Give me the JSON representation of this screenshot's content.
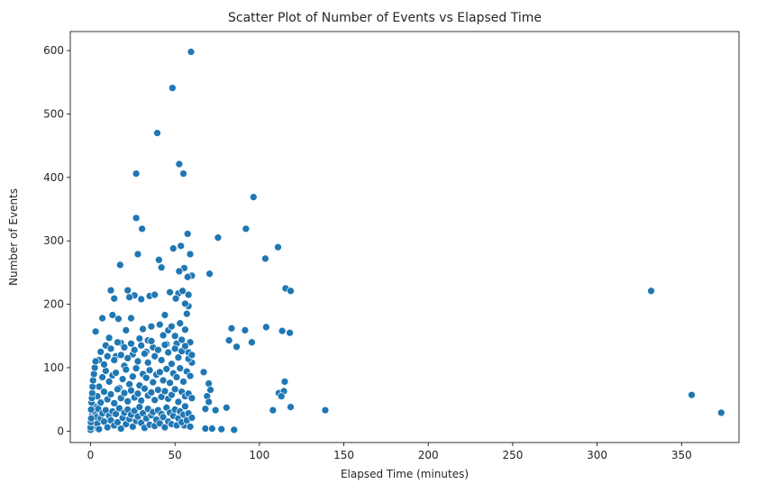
{
  "chart_data": {
    "type": "scatter",
    "title": "Scatter Plot of Number of Events vs Elapsed Time",
    "xlabel": "Elapsed Time (minutes)",
    "ylabel": "Number of Events",
    "xlim": [
      -12,
      384
    ],
    "ylim": [
      -18,
      630
    ],
    "xticks": [
      0,
      50,
      100,
      150,
      200,
      250,
      300,
      350
    ],
    "yticks": [
      0,
      100,
      200,
      300,
      400,
      500,
      600
    ],
    "grid": false,
    "legend": "none",
    "marker_color": "#1f77b4",
    "marker_edge_color": "#ffffff",
    "points": [
      [
        59.5,
        598
      ],
      [
        48.5,
        541
      ],
      [
        39.5,
        470
      ],
      [
        52.5,
        421
      ],
      [
        27,
        406
      ],
      [
        55,
        406
      ],
      [
        96.5,
        369
      ],
      [
        27,
        336
      ],
      [
        30.5,
        319
      ],
      [
        92,
        319
      ],
      [
        57.5,
        311
      ],
      [
        75.5,
        305
      ],
      [
        111,
        290
      ],
      [
        49,
        288
      ],
      [
        53.5,
        292
      ],
      [
        59,
        279
      ],
      [
        28,
        279
      ],
      [
        103.5,
        272
      ],
      [
        40.5,
        270
      ],
      [
        17.5,
        262
      ],
      [
        42,
        258
      ],
      [
        55.5,
        257
      ],
      [
        52.5,
        252
      ],
      [
        70.5,
        248
      ],
      [
        60,
        245
      ],
      [
        57.5,
        243
      ],
      [
        115.5,
        225
      ],
      [
        118.5,
        221
      ],
      [
        332,
        221
      ],
      [
        12,
        222
      ],
      [
        30,
        208
      ],
      [
        22,
        222
      ],
      [
        35,
        213
      ],
      [
        26,
        214
      ],
      [
        52,
        217
      ],
      [
        54.5,
        221
      ],
      [
        58,
        197
      ],
      [
        13,
        183
      ],
      [
        14,
        209
      ],
      [
        23,
        211
      ],
      [
        47,
        219
      ],
      [
        16.5,
        177
      ],
      [
        38,
        215
      ],
      [
        50.5,
        209
      ],
      [
        82,
        143
      ],
      [
        83.5,
        162
      ],
      [
        91.5,
        159
      ],
      [
        104,
        164
      ],
      [
        113.5,
        158
      ],
      [
        118,
        155
      ],
      [
        86.5,
        133
      ],
      [
        95.5,
        140
      ],
      [
        80.5,
        37
      ],
      [
        67,
        93
      ],
      [
        70,
        75
      ],
      [
        71,
        65
      ],
      [
        69,
        55
      ],
      [
        70,
        46
      ],
      [
        68,
        35
      ],
      [
        74,
        33
      ],
      [
        108,
        33
      ],
      [
        118.5,
        38
      ],
      [
        139,
        33
      ],
      [
        356,
        57
      ],
      [
        373.5,
        29
      ],
      [
        111.5,
        60
      ],
      [
        114.5,
        63
      ],
      [
        113,
        55
      ],
      [
        115,
        78
      ],
      [
        68,
        4
      ],
      [
        72,
        4
      ],
      [
        77.5,
        3
      ],
      [
        85,
        2
      ],
      [
        55.5,
        9
      ],
      [
        3,
        157
      ],
      [
        5,
        112
      ],
      [
        7,
        178
      ],
      [
        9,
        135
      ],
      [
        11,
        147
      ],
      [
        15,
        118
      ],
      [
        18,
        139
      ],
      [
        20,
        103
      ],
      [
        21,
        159
      ],
      [
        24,
        178
      ],
      [
        25,
        121
      ],
      [
        29,
        146
      ],
      [
        31,
        161
      ],
      [
        33,
        125
      ],
      [
        34,
        143
      ],
      [
        36,
        165
      ],
      [
        37,
        132
      ],
      [
        41,
        168
      ],
      [
        43,
        151
      ],
      [
        44,
        183
      ],
      [
        45,
        137
      ],
      [
        46,
        159
      ],
      [
        48,
        165
      ],
      [
        50,
        150
      ],
      [
        51,
        138
      ],
      [
        53,
        170
      ],
      [
        54,
        144
      ],
      [
        56,
        160
      ],
      [
        57,
        185
      ],
      [
        58,
        124
      ],
      [
        59,
        140
      ],
      [
        60,
        108
      ],
      [
        56,
        201
      ],
      [
        58,
        215
      ],
      [
        5,
        70
      ],
      [
        7,
        85
      ],
      [
        9,
        95
      ],
      [
        11,
        78
      ],
      [
        13,
        88
      ],
      [
        15,
        92
      ],
      [
        17,
        68
      ],
      [
        19,
        82
      ],
      [
        21,
        97
      ],
      [
        23,
        74
      ],
      [
        25,
        86
      ],
      [
        27,
        99
      ],
      [
        29,
        72
      ],
      [
        31,
        90
      ],
      [
        33,
        84
      ],
      [
        35,
        96
      ],
      [
        37,
        77
      ],
      [
        39,
        89
      ],
      [
        41,
        93
      ],
      [
        43,
        80
      ],
      [
        45,
        98
      ],
      [
        47,
        76
      ],
      [
        49,
        91
      ],
      [
        51,
        85
      ],
      [
        53,
        99
      ],
      [
        55,
        78
      ],
      [
        57,
        94
      ],
      [
        59,
        87
      ],
      [
        2,
        40
      ],
      [
        4,
        55
      ],
      [
        6,
        45
      ],
      [
        8,
        62
      ],
      [
        10,
        50
      ],
      [
        12,
        58
      ],
      [
        14,
        44
      ],
      [
        16,
        66
      ],
      [
        18,
        52
      ],
      [
        20,
        60
      ],
      [
        22,
        47
      ],
      [
        24,
        64
      ],
      [
        26,
        53
      ],
      [
        28,
        59
      ],
      [
        30,
        48
      ],
      [
        32,
        67
      ],
      [
        34,
        56
      ],
      [
        36,
        61
      ],
      [
        38,
        49
      ],
      [
        40,
        65
      ],
      [
        42,
        54
      ],
      [
        44,
        63
      ],
      [
        46,
        51
      ],
      [
        48,
        57
      ],
      [
        50,
        66
      ],
      [
        52,
        46
      ],
      [
        54,
        62
      ],
      [
        56,
        55
      ],
      [
        58,
        59
      ],
      [
        60,
        52
      ],
      [
        0.5,
        10
      ],
      [
        1,
        25
      ],
      [
        1.5,
        5
      ],
      [
        2,
        18
      ],
      [
        2.5,
        30
      ],
      [
        3,
        8
      ],
      [
        3.5,
        22
      ],
      [
        4,
        12
      ],
      [
        4.5,
        35
      ],
      [
        5,
        3
      ],
      [
        6,
        20
      ],
      [
        7,
        28
      ],
      [
        8,
        15
      ],
      [
        9,
        33
      ],
      [
        10,
        6
      ],
      [
        11,
        24
      ],
      [
        12,
        17
      ],
      [
        13,
        31
      ],
      [
        14,
        9
      ],
      [
        15,
        27
      ],
      [
        16,
        14
      ],
      [
        17,
        36
      ],
      [
        18,
        4
      ],
      [
        19,
        21
      ],
      [
        20,
        29
      ],
      [
        21,
        11
      ],
      [
        22,
        34
      ],
      [
        23,
        19
      ],
      [
        24,
        26
      ],
      [
        25,
        7
      ],
      [
        26,
        32
      ],
      [
        27,
        16
      ],
      [
        28,
        23
      ],
      [
        29,
        38
      ],
      [
        30,
        13
      ],
      [
        31,
        28
      ],
      [
        32,
        5
      ],
      [
        33,
        20
      ],
      [
        34,
        35
      ],
      [
        35,
        10
      ],
      [
        36,
        25
      ],
      [
        37,
        30
      ],
      [
        38,
        8
      ],
      [
        39,
        18
      ],
      [
        40,
        33
      ],
      [
        41,
        12
      ],
      [
        42,
        27
      ],
      [
        43,
        22
      ],
      [
        44,
        6
      ],
      [
        45,
        37
      ],
      [
        46,
        15
      ],
      [
        47,
        29
      ],
      [
        48,
        11
      ],
      [
        49,
        24
      ],
      [
        50,
        34
      ],
      [
        51,
        9
      ],
      [
        52,
        20
      ],
      [
        53,
        31
      ],
      [
        54,
        14
      ],
      [
        55,
        26
      ],
      [
        56,
        39
      ],
      [
        57,
        17
      ],
      [
        58,
        28
      ],
      [
        59,
        7
      ],
      [
        60,
        21
      ],
      [
        0,
        2
      ],
      [
        0,
        6
      ],
      [
        0.2,
        14
      ],
      [
        0.4,
        20
      ],
      [
        0.3,
        34
      ],
      [
        0.6,
        45
      ],
      [
        0.8,
        52
      ],
      [
        1,
        60
      ],
      [
        1.2,
        70
      ],
      [
        1.5,
        80
      ],
      [
        2,
        90
      ],
      [
        2.5,
        100
      ],
      [
        3,
        110
      ],
      [
        6,
        125
      ],
      [
        8,
        105
      ],
      [
        10,
        118
      ],
      [
        12,
        130
      ],
      [
        14,
        112
      ],
      [
        16,
        140
      ],
      [
        18,
        120
      ],
      [
        20,
        132
      ],
      [
        22,
        115
      ],
      [
        24,
        138
      ],
      [
        26,
        128
      ],
      [
        28,
        110
      ],
      [
        30,
        135
      ],
      [
        32,
        122
      ],
      [
        34,
        108
      ],
      [
        36,
        142
      ],
      [
        38,
        118
      ],
      [
        40,
        128
      ],
      [
        42,
        112
      ],
      [
        44,
        136
      ],
      [
        46,
        124
      ],
      [
        48,
        106
      ],
      [
        50,
        130
      ],
      [
        52,
        116
      ],
      [
        54,
        126
      ],
      [
        56,
        134
      ],
      [
        58,
        114
      ],
      [
        60,
        120
      ]
    ]
  }
}
